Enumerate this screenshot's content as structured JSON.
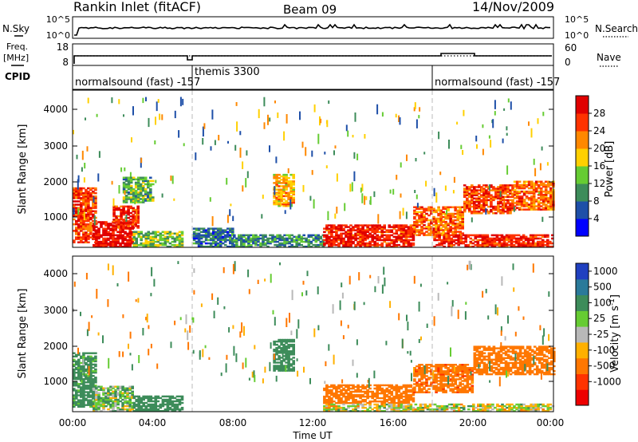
{
  "header": {
    "station": "Rankin Inlet (fitACF)",
    "beam": "Beam 09",
    "date": "14/Nov/2009"
  },
  "noise_panel": {
    "left_label": "N.Sky",
    "right_label": "N.Search",
    "left_ticks": [
      "10^5",
      "10^0"
    ],
    "right_ticks": [
      "10^5",
      "10^0"
    ]
  },
  "freq_panel": {
    "left_label_1": "Freq.",
    "left_label_2": "[MHz]",
    "right_label": "Nave",
    "left_ticks": [
      "18",
      "8"
    ],
    "right_ticks": [
      "60",
      "0"
    ]
  },
  "cpid_panel": {
    "label": "CPID",
    "programs": [
      {
        "name": "normalsound (fast) -157",
        "start_hour": 0
      },
      {
        "name": "themis 3300",
        "start_hour": 6
      },
      {
        "name": "normalsound (fast) -157",
        "start_hour": 18
      }
    ]
  },
  "power_panel": {
    "ylabel": "Slant Range [km]",
    "colorbar_label": "Power [dB]",
    "colorbar_ticks": [
      "4",
      "8",
      "12",
      "16",
      "20",
      "24",
      "28"
    ],
    "colors": [
      "#0000ff",
      "#1e4fa8",
      "#3d8c5a",
      "#66cc33",
      "#ffd000",
      "#ff8800",
      "#ff3300",
      "#e00000"
    ]
  },
  "velocity_panel": {
    "ylabel": "Slant Range [km]",
    "colorbar_label": "Velocity [m s-1]",
    "colorbar_ticks": [
      "1000",
      "500",
      "100",
      "25",
      "-25",
      "-100",
      "-500",
      "-1000"
    ],
    "colors": [
      "#2040c0",
      "#2a7a9a",
      "#3d8c5a",
      "#66cc33",
      "#b8b8b8",
      "#ffb000",
      "#ff7700",
      "#ff3300",
      "#ee0000"
    ]
  },
  "time_axis": {
    "xlabel": "Time UT",
    "tick_labels": [
      "00:00",
      "04:00",
      "08:00",
      "12:00",
      "16:00",
      "20:00",
      "00:00"
    ]
  },
  "chart_data": [
    {
      "type": "heatmap",
      "quantity": "Power",
      "units": "dB",
      "x_axis": "Time UT",
      "x_range_hours": [
        0,
        24
      ],
      "ylabel": "Slant Range [km]",
      "y_range_km": [
        180,
        4500
      ],
      "y_ticks": [
        1000,
        2000,
        3000,
        4000
      ],
      "color_range": [
        0,
        32
      ],
      "echo_regions": [
        {
          "t0": 0.0,
          "t1": 1.2,
          "r0": 300,
          "r1": 1800,
          "value": 26
        },
        {
          "t0": 1.0,
          "t1": 3.0,
          "r0": 180,
          "r1": 900,
          "value": 30
        },
        {
          "t0": 2.0,
          "t1": 3.3,
          "r0": 700,
          "r1": 1300,
          "value": 28
        },
        {
          "t0": 3.0,
          "t1": 5.5,
          "r0": 180,
          "r1": 600,
          "value": 14
        },
        {
          "t0": 2.5,
          "t1": 4.0,
          "r0": 1400,
          "r1": 2100,
          "value": 12
        },
        {
          "t0": 6.0,
          "t1": 8.0,
          "r0": 180,
          "r1": 700,
          "value": 8
        },
        {
          "t0": 8.0,
          "t1": 12.5,
          "r0": 180,
          "r1": 500,
          "value": 10
        },
        {
          "t0": 10.0,
          "t1": 11.0,
          "r0": 1300,
          "r1": 2200,
          "value": 20
        },
        {
          "t0": 12.5,
          "t1": 17.0,
          "r0": 180,
          "r1": 800,
          "value": 28
        },
        {
          "t0": 17.0,
          "t1": 19.5,
          "r0": 500,
          "r1": 1300,
          "value": 24
        },
        {
          "t0": 19.5,
          "t1": 22.0,
          "r0": 1100,
          "r1": 1900,
          "value": 26
        },
        {
          "t0": 22.0,
          "t1": 24.0,
          "r0": 1200,
          "r1": 2000,
          "value": 24
        },
        {
          "t0": 18.0,
          "t1": 24.0,
          "r0": 180,
          "r1": 500,
          "value": 28
        }
      ]
    },
    {
      "type": "heatmap",
      "quantity": "Velocity",
      "units": "m s-1",
      "x_axis": "Time UT",
      "x_range_hours": [
        0,
        24
      ],
      "ylabel": "Slant Range [km]",
      "y_range_km": [
        180,
        4500
      ],
      "y_ticks": [
        1000,
        2000,
        3000,
        4000
      ],
      "color_levels": [
        1000,
        500,
        100,
        25,
        -25,
        -100,
        -500,
        -1000
      ],
      "echo_regions": [
        {
          "t0": 0.0,
          "t1": 1.2,
          "r0": 300,
          "r1": 1800,
          "value": 200
        },
        {
          "t0": 1.0,
          "t1": 3.0,
          "r0": 180,
          "r1": 900,
          "value": 60
        },
        {
          "t0": 3.0,
          "t1": 5.5,
          "r0": 180,
          "r1": 600,
          "value": 300
        },
        {
          "t0": 10.0,
          "t1": 11.0,
          "r0": 1300,
          "r1": 2200,
          "value": 300
        },
        {
          "t0": 12.5,
          "t1": 17.0,
          "r0": 400,
          "r1": 900,
          "value": -300
        },
        {
          "t0": 17.0,
          "t1": 20.0,
          "r0": 700,
          "r1": 1500,
          "value": -400
        },
        {
          "t0": 20.0,
          "t1": 24.0,
          "r0": 1200,
          "r1": 2000,
          "value": -300
        },
        {
          "t0": 12.5,
          "t1": 24.0,
          "r0": 180,
          "r1": 400,
          "value": 0
        }
      ]
    }
  ]
}
